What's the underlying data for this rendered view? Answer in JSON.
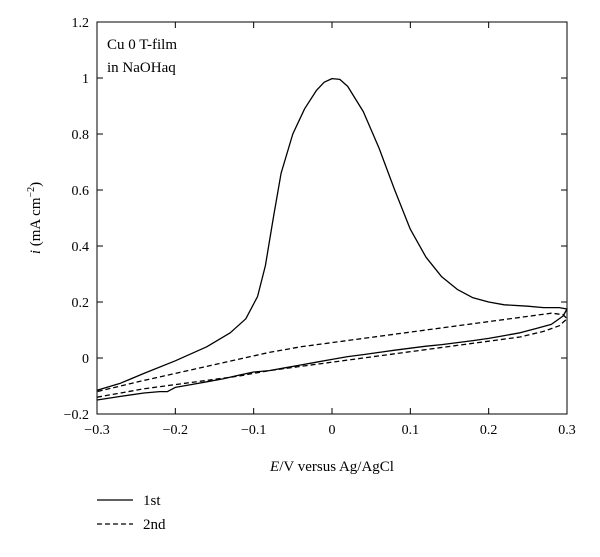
{
  "chart_data": {
    "type": "line",
    "title": "",
    "annotation_lines": [
      "Cu 0 T-film",
      "in NaOHaq"
    ],
    "xlabel": {
      "italic": "E",
      "rest": "/V versus Ag/AgCl"
    },
    "ylabel": {
      "italic": "i",
      "rest": " (mA cm",
      "sup": "−2",
      "close": ")"
    },
    "xlim": [
      -0.3,
      0.3
    ],
    "ylim": [
      -0.2,
      1.2
    ],
    "x_ticks": [
      -0.3,
      -0.2,
      -0.1,
      0,
      0.1,
      0.2,
      0.3
    ],
    "x_tick_labels": [
      "−0.3",
      "−0.2",
      "−0.1",
      "0",
      "0.1",
      "0.2",
      "0.3"
    ],
    "y_ticks": [
      -0.2,
      0,
      0.2,
      0.4,
      0.6,
      0.8,
      1,
      1.2
    ],
    "y_tick_labels": [
      "−0.2",
      "0",
      "0.2",
      "0.4",
      "0.6",
      "0.8",
      "1",
      "1.2"
    ],
    "grid": false,
    "legend_position": "below-left",
    "series": [
      {
        "name": "1st",
        "style": "solid",
        "points": [
          [
            -0.3,
            -0.15
          ],
          [
            -0.27,
            -0.137
          ],
          [
            -0.24,
            -0.125
          ],
          [
            -0.22,
            -0.12
          ],
          [
            -0.21,
            -0.12
          ],
          [
            -0.2,
            -0.105
          ],
          [
            -0.18,
            -0.095
          ],
          [
            -0.16,
            -0.085
          ],
          [
            -0.14,
            -0.075
          ],
          [
            -0.12,
            -0.062
          ],
          [
            -0.1,
            -0.05
          ],
          [
            -0.08,
            -0.045
          ],
          [
            -0.06,
            -0.035
          ],
          [
            -0.04,
            -0.025
          ],
          [
            -0.02,
            -0.015
          ],
          [
            0,
            -0.005
          ],
          [
            0.02,
            0.005
          ],
          [
            0.04,
            0.012
          ],
          [
            0.06,
            0.02
          ],
          [
            0.08,
            0.028
          ],
          [
            0.1,
            0.035
          ],
          [
            0.12,
            0.042
          ],
          [
            0.14,
            0.048
          ],
          [
            0.16,
            0.055
          ],
          [
            0.18,
            0.062
          ],
          [
            0.2,
            0.07
          ],
          [
            0.22,
            0.08
          ],
          [
            0.24,
            0.09
          ],
          [
            0.26,
            0.105
          ],
          [
            0.28,
            0.12
          ],
          [
            0.295,
            0.15
          ],
          [
            0.3,
            0.175
          ],
          [
            0.29,
            0.18
          ],
          [
            0.27,
            0.18
          ],
          [
            0.25,
            0.185
          ],
          [
            0.22,
            0.19
          ],
          [
            0.2,
            0.2
          ],
          [
            0.18,
            0.215
          ],
          [
            0.16,
            0.245
          ],
          [
            0.14,
            0.29
          ],
          [
            0.12,
            0.36
          ],
          [
            0.1,
            0.46
          ],
          [
            0.08,
            0.6
          ],
          [
            0.06,
            0.75
          ],
          [
            0.04,
            0.88
          ],
          [
            0.02,
            0.97
          ],
          [
            0.01,
            0.995
          ],
          [
            0,
            0.998
          ],
          [
            -0.01,
            0.985
          ],
          [
            -0.02,
            0.955
          ],
          [
            -0.035,
            0.89
          ],
          [
            -0.05,
            0.8
          ],
          [
            -0.065,
            0.66
          ],
          [
            -0.075,
            0.5
          ],
          [
            -0.085,
            0.33
          ],
          [
            -0.095,
            0.22
          ],
          [
            -0.11,
            0.14
          ],
          [
            -0.13,
            0.09
          ],
          [
            -0.16,
            0.04
          ],
          [
            -0.2,
            -0.01
          ],
          [
            -0.24,
            -0.055
          ],
          [
            -0.27,
            -0.09
          ],
          [
            -0.3,
            -0.115
          ]
        ]
      },
      {
        "name": "2nd",
        "style": "dashed",
        "points": [
          [
            -0.3,
            -0.14
          ],
          [
            -0.27,
            -0.125
          ],
          [
            -0.24,
            -0.11
          ],
          [
            -0.2,
            -0.095
          ],
          [
            -0.16,
            -0.08
          ],
          [
            -0.12,
            -0.065
          ],
          [
            -0.08,
            -0.045
          ],
          [
            -0.04,
            -0.03
          ],
          [
            0,
            -0.015
          ],
          [
            0.04,
            0.0
          ],
          [
            0.08,
            0.015
          ],
          [
            0.12,
            0.03
          ],
          [
            0.16,
            0.045
          ],
          [
            0.2,
            0.06
          ],
          [
            0.24,
            0.075
          ],
          [
            0.27,
            0.095
          ],
          [
            0.29,
            0.115
          ],
          [
            0.3,
            0.14
          ],
          [
            0.295,
            0.155
          ],
          [
            0.28,
            0.16
          ],
          [
            0.24,
            0.145
          ],
          [
            0.2,
            0.13
          ],
          [
            0.16,
            0.115
          ],
          [
            0.12,
            0.1
          ],
          [
            0.08,
            0.085
          ],
          [
            0.04,
            0.07
          ],
          [
            0,
            0.055
          ],
          [
            -0.04,
            0.04
          ],
          [
            -0.08,
            0.02
          ],
          [
            -0.12,
            -0.005
          ],
          [
            -0.16,
            -0.03
          ],
          [
            -0.2,
            -0.055
          ],
          [
            -0.24,
            -0.08
          ],
          [
            -0.27,
            -0.1
          ],
          [
            -0.3,
            -0.12
          ]
        ]
      }
    ]
  }
}
